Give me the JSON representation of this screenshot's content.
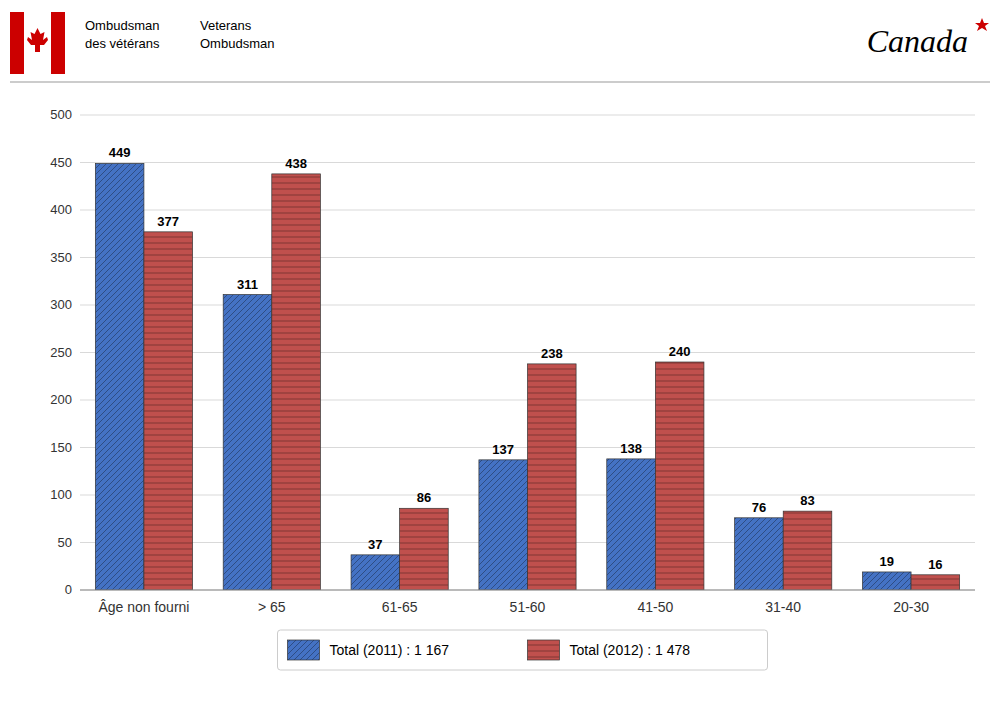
{
  "chart_data": {
    "type": "bar",
    "categories": [
      "Âge non fourni",
      "> 65",
      "61-65",
      "51-60",
      "41-50",
      "31-40",
      "20-30"
    ],
    "series": [
      {
        "name": "Total (2011) : 1 167",
        "color": "#4472c4",
        "values": [
          449,
          311,
          37,
          137,
          138,
          76,
          19
        ]
      },
      {
        "name": "Total (2012) : 1 478",
        "color": "#c0504d",
        "values": [
          377,
          438,
          86,
          238,
          240,
          83,
          16
        ]
      }
    ],
    "ylim": [
      0,
      500
    ],
    "yticks": [
      0,
      50,
      100,
      150,
      200,
      250,
      300,
      350,
      400,
      450,
      500
    ],
    "grid": true,
    "legend": "bottom",
    "data_labels": true,
    "annotations": [
      "Ombudsman",
      "des vétérans",
      "Veterans",
      "Ombudsman",
      "Canad",
      "a"
    ]
  }
}
